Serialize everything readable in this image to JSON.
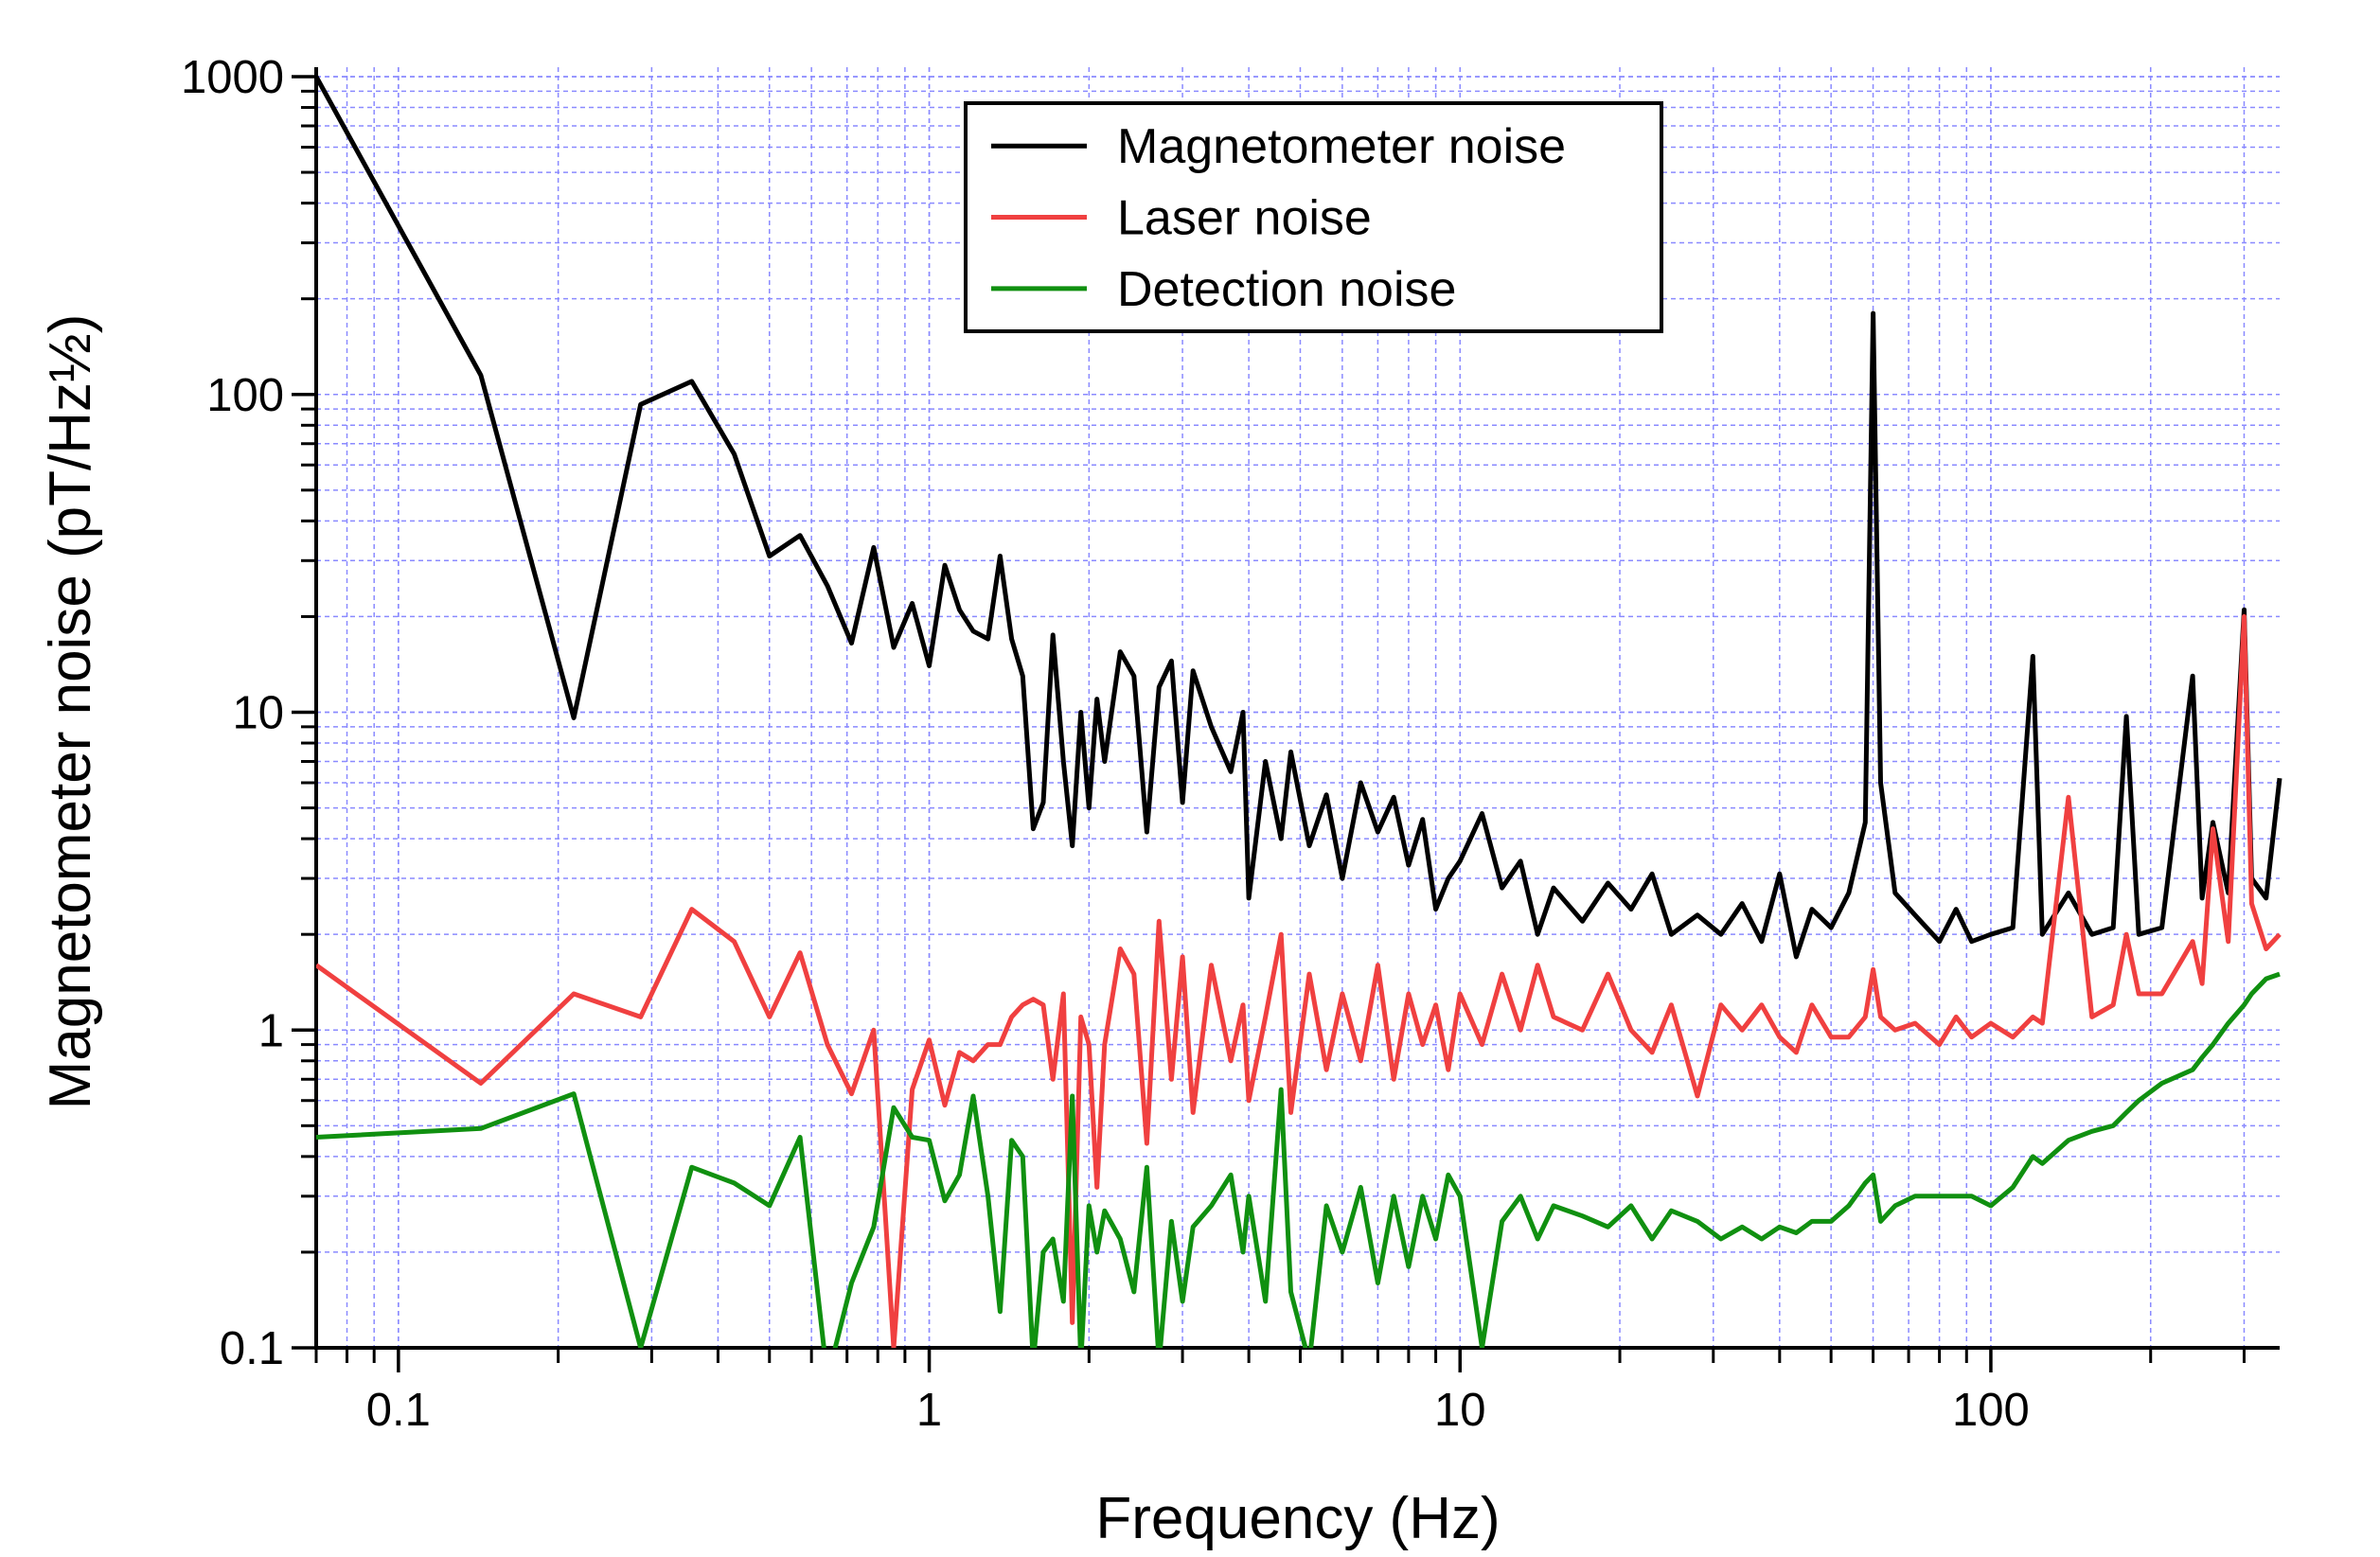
{
  "chart_data": {
    "type": "line",
    "xlabel": "Frequency (Hz)",
    "ylabel": "Magnetometer noise (pT/Hz½)",
    "xscale": "log",
    "yscale": "log",
    "grid": true,
    "legend": "upper center",
    "xlim": [
      0.07,
      350
    ],
    "ylim": [
      0.1,
      1000
    ],
    "xticks": [
      0.1,
      1,
      10,
      100
    ],
    "yticks": [
      0.1,
      1,
      10,
      100,
      1000
    ],
    "x": [
      0.07,
      0.143,
      0.214,
      0.286,
      0.357,
      0.429,
      0.5,
      0.571,
      0.643,
      0.714,
      0.786,
      0.857,
      0.929,
      1.0,
      1.07,
      1.14,
      1.21,
      1.29,
      1.36,
      1.43,
      1.5,
      1.57,
      1.64,
      1.71,
      1.79,
      1.86,
      1.93,
      2.0,
      2.07,
      2.14,
      2.29,
      2.43,
      2.57,
      2.71,
      2.86,
      3.0,
      3.14,
      3.4,
      3.7,
      3.9,
      4.0,
      4.3,
      4.6,
      4.8,
      5.2,
      5.6,
      6.0,
      6.5,
      7.0,
      7.5,
      8.0,
      8.5,
      9.0,
      9.5,
      10,
      11,
      12,
      13,
      14,
      15,
      17,
      19,
      21,
      23,
      25,
      28,
      31,
      34,
      37,
      40,
      43,
      46,
      50,
      54,
      58,
      60,
      62,
      66,
      72,
      80,
      86,
      92,
      100,
      110,
      120,
      125,
      140,
      155,
      170,
      180,
      190,
      210,
      240,
      250,
      262,
      280,
      300,
      310,
      330,
      350
    ],
    "series": [
      {
        "name": "Magnetometer noise",
        "color": "#000000",
        "values": [
          1000,
          115,
          9.6,
          93,
          110,
          65,
          31,
          36,
          25,
          16.5,
          33,
          16,
          22,
          14,
          29,
          21,
          18,
          17,
          31,
          17,
          13,
          4.3,
          5.2,
          17.5,
          7,
          3.8,
          10,
          5,
          11,
          7,
          15.5,
          13,
          4.2,
          12,
          14.5,
          5.2,
          13.5,
          9,
          6.5,
          10,
          2.6,
          7,
          4,
          7.5,
          3.8,
          5.5,
          3.0,
          6,
          4.2,
          5.4,
          3.3,
          4.6,
          2.4,
          3,
          3.4,
          4.8,
          2.8,
          3.4,
          2.0,
          2.8,
          2.2,
          2.9,
          2.4,
          3.1,
          2.0,
          2.3,
          2.0,
          2.5,
          1.9,
          3.1,
          1.7,
          2.4,
          2.1,
          2.7,
          4.5,
          180,
          6,
          2.7,
          2.3,
          1.9,
          2.4,
          1.9,
          2.0,
          2.1,
          15,
          2.0,
          2.7,
          2.0,
          2.1,
          9.7,
          2.0,
          2.1,
          13,
          2.6,
          4.5,
          2.7,
          21,
          3,
          2.6,
          6.2
        ]
      },
      {
        "name": "Laser noise",
        "color": "#f04040",
        "values": [
          1.6,
          0.68,
          1.3,
          1.1,
          2.4,
          1.9,
          1.1,
          1.75,
          0.9,
          0.63,
          1.0,
          0.1,
          0.65,
          0.93,
          0.58,
          0.85,
          0.8,
          0.9,
          0.9,
          1.1,
          1.2,
          1.25,
          1.2,
          0.7,
          1.3,
          0.12,
          1.1,
          0.9,
          0.32,
          0.9,
          1.8,
          1.5,
          0.44,
          2.2,
          0.7,
          1.7,
          0.55,
          1.6,
          0.8,
          1.2,
          0.6,
          1.1,
          2.0,
          0.55,
          1.5,
          0.75,
          1.3,
          0.8,
          1.6,
          0.7,
          1.3,
          0.9,
          1.2,
          0.75,
          1.3,
          0.9,
          1.5,
          1.0,
          1.6,
          1.1,
          1.0,
          1.5,
          1.0,
          0.85,
          1.2,
          0.62,
          1.2,
          1.0,
          1.2,
          0.95,
          0.85,
          1.2,
          0.95,
          0.95,
          1.1,
          1.55,
          1.1,
          1.0,
          1.05,
          0.9,
          1.1,
          0.95,
          1.05,
          0.95,
          1.1,
          1.05,
          5.4,
          1.1,
          1.2,
          2.0,
          1.3,
          1.3,
          1.9,
          1.4,
          4.3,
          1.9,
          20,
          2.5,
          1.8,
          2.0
        ]
      },
      {
        "name": "Detection noise",
        "color": "#109010",
        "values": [
          0.46,
          0.49,
          0.63,
          0.1,
          0.37,
          0.33,
          0.28,
          0.46,
          0.08,
          0.16,
          0.24,
          0.57,
          0.46,
          0.45,
          0.29,
          0.35,
          0.62,
          0.3,
          0.13,
          0.45,
          0.4,
          0.09,
          0.2,
          0.22,
          0.14,
          0.62,
          0.09,
          0.28,
          0.2,
          0.27,
          0.22,
          0.15,
          0.37,
          0.09,
          0.25,
          0.14,
          0.24,
          0.28,
          0.35,
          0.2,
          0.3,
          0.14,
          0.65,
          0.15,
          0.09,
          0.28,
          0.2,
          0.32,
          0.16,
          0.3,
          0.18,
          0.3,
          0.22,
          0.35,
          0.3,
          0.1,
          0.25,
          0.3,
          0.22,
          0.28,
          0.26,
          0.24,
          0.28,
          0.22,
          0.27,
          0.25,
          0.22,
          0.24,
          0.22,
          0.24,
          0.23,
          0.25,
          0.25,
          0.28,
          0.33,
          0.35,
          0.25,
          0.28,
          0.3,
          0.3,
          0.3,
          0.3,
          0.28,
          0.32,
          0.4,
          0.38,
          0.45,
          0.48,
          0.5,
          0.55,
          0.6,
          0.68,
          0.75,
          0.82,
          0.9,
          1.05,
          1.2,
          1.3,
          1.45,
          1.5
        ]
      }
    ]
  }
}
